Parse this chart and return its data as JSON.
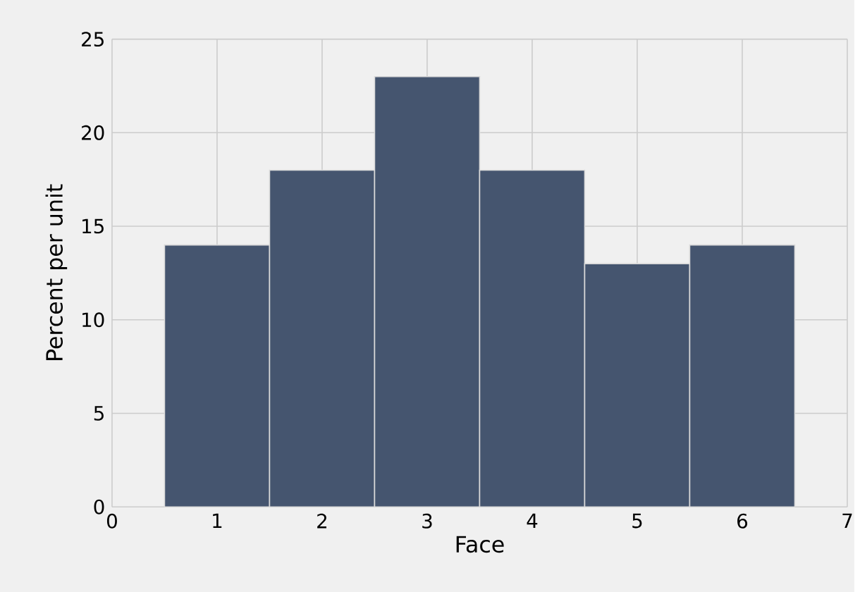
{
  "chart_data": {
    "type": "histogram",
    "xlabel": "Face",
    "ylabel": "Percent per unit",
    "bins": [
      0.5,
      1.5,
      2.5,
      3.5,
      4.5,
      5.5,
      6.5
    ],
    "values": [
      14,
      18,
      23,
      18,
      13,
      14
    ],
    "color": "#45556f",
    "xlim": [
      0,
      7
    ],
    "ylim": [
      0,
      25
    ],
    "xticks": [
      0,
      1,
      2,
      3,
      4,
      5,
      6,
      7
    ],
    "yticks": [
      0,
      5,
      10,
      15,
      20,
      25
    ],
    "grid": true
  }
}
